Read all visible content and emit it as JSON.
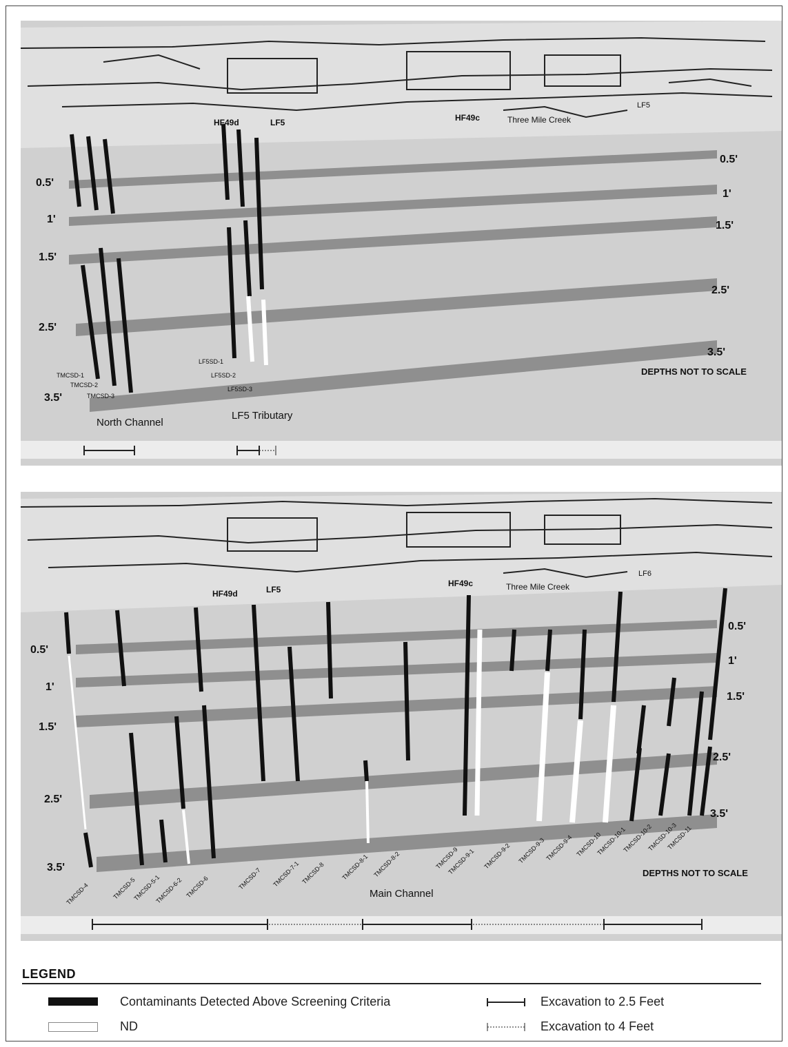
{
  "panel_top": {
    "map_labels": [
      "HF49d",
      "LF5",
      "HF49c",
      "Three Mile Creek",
      "LF5"
    ],
    "depths_left": [
      "0.5'",
      "1'",
      "1.5'",
      "2.5'",
      "3.5'"
    ],
    "depths_right": [
      "0.5'",
      "1'",
      "1.5'",
      "2.5'",
      "3.5'"
    ],
    "samples": [
      "TMCSD-1",
      "TMCSD-2",
      "TMCSD-3",
      "LF5SD-1",
      "LF5SD-2",
      "LF5SD-3"
    ],
    "channel_labels": [
      "North Channel",
      "LF5 Tributary"
    ],
    "note": "DEPTHS NOT TO SCALE"
  },
  "panel_bottom": {
    "map_labels": [
      "HF49d",
      "LF5",
      "HF49c",
      "Three Mile Creek",
      "LF6"
    ],
    "depths_left": [
      "0.5'",
      "1'",
      "1.5'",
      "2.5'",
      "3.5'"
    ],
    "depths_right": [
      "0.5'",
      "1'",
      "1.5'",
      "2.5'",
      "3.5'"
    ],
    "samples": [
      "TMCSD-4",
      "TMCSD-5",
      "TMCSD-5-1",
      "TMCSD-6-2",
      "TMCSD-6",
      "TMCSD-7",
      "TMCSD-7-1",
      "TMCSD-8",
      "TMCSD-8-1",
      "TMCSD-8-2",
      "TMCSD-9",
      "TMCSD-9-1",
      "TMCSD-9-2",
      "TMCSD-9-3",
      "TMCSD-9-4",
      "TMCSD-10",
      "TMCSD-10-1",
      "TMCSD-10-2",
      "TMCSD-10-3",
      "TMCSD-11"
    ],
    "channel_label": "Main Channel",
    "note": "DEPTHS NOT TO SCALE"
  },
  "legend": {
    "title": "LEGEND",
    "contaminants": "Contaminants Detected Above Screening Criteria",
    "nd": "ND",
    "exc25": "Excavation to 2.5 Feet",
    "exc4": "Excavation to 4 Feet"
  },
  "colors": {
    "panel_bg": "#c8c8c8",
    "map_bg": "#dcdcdc",
    "layer": "#8f8f8f",
    "contaminant": "#111111",
    "nd": "#ffffff"
  }
}
